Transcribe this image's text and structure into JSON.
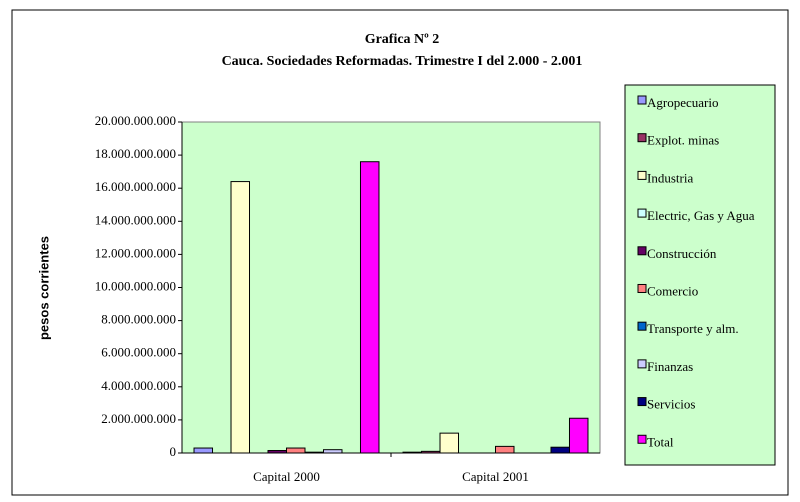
{
  "chart_data": {
    "type": "bar",
    "title": "Grafica Nº 2",
    "subtitle": "Cauca. Sociedades Reformadas. Trimestre I del 2.000 - 2.001",
    "y_label": "pesos corrientes",
    "categories": [
      "Capital 2000",
      "Capital 2001"
    ],
    "series": [
      {
        "name": "Agropecuario",
        "color": "#9999ff",
        "values": [
          300000000,
          50000000
        ]
      },
      {
        "name": "Explot. minas",
        "color": "#993366",
        "values": [
          0,
          100000000
        ]
      },
      {
        "name": "Industria",
        "color": "#ffffcc",
        "values": [
          16400000000,
          1200000000
        ]
      },
      {
        "name": "Electric, Gas y Agua",
        "color": "#ccffff",
        "values": [
          0,
          0
        ]
      },
      {
        "name": "Construcción",
        "color": "#660066",
        "values": [
          150000000,
          0
        ]
      },
      {
        "name": "Comercio",
        "color": "#ff8080",
        "values": [
          300000000,
          400000000
        ]
      },
      {
        "name": "Transporte y alm.",
        "color": "#0066cc",
        "values": [
          50000000,
          0
        ]
      },
      {
        "name": "Finanzas",
        "color": "#ccccff",
        "values": [
          200000000,
          0
        ]
      },
      {
        "name": "Servicios",
        "color": "#000080",
        "values": [
          0,
          350000000
        ]
      },
      {
        "name": "Total",
        "color": "#ff00ff",
        "values": [
          17600000000,
          2100000000
        ]
      }
    ],
    "ylim": [
      0,
      20000000000
    ],
    "yticks": [
      0,
      {
        "value": 2000000000,
        "label": "2.000.000.000"
      },
      {
        "value": 4000000000,
        "label": "4.000.000.000"
      },
      {
        "value": 6000000000,
        "label": "6.000.000.000"
      },
      {
        "value": 8000000000,
        "label": "8.000.000.000"
      },
      {
        "value": 10000000000,
        "label": "10.000.000.000"
      },
      {
        "value": 12000000000,
        "label": "12.000.000.000"
      },
      {
        "value": 14000000000,
        "label": "14.000.000.000"
      },
      {
        "value": 16000000000,
        "label": "16.000.000.000"
      },
      {
        "value": 18000000000,
        "label": "18.000.000.000"
      },
      {
        "value": 20000000000,
        "label": "20.000.000.000"
      }
    ],
    "grid": false,
    "legend": "right",
    "plot_background": "#ccffcc"
  }
}
